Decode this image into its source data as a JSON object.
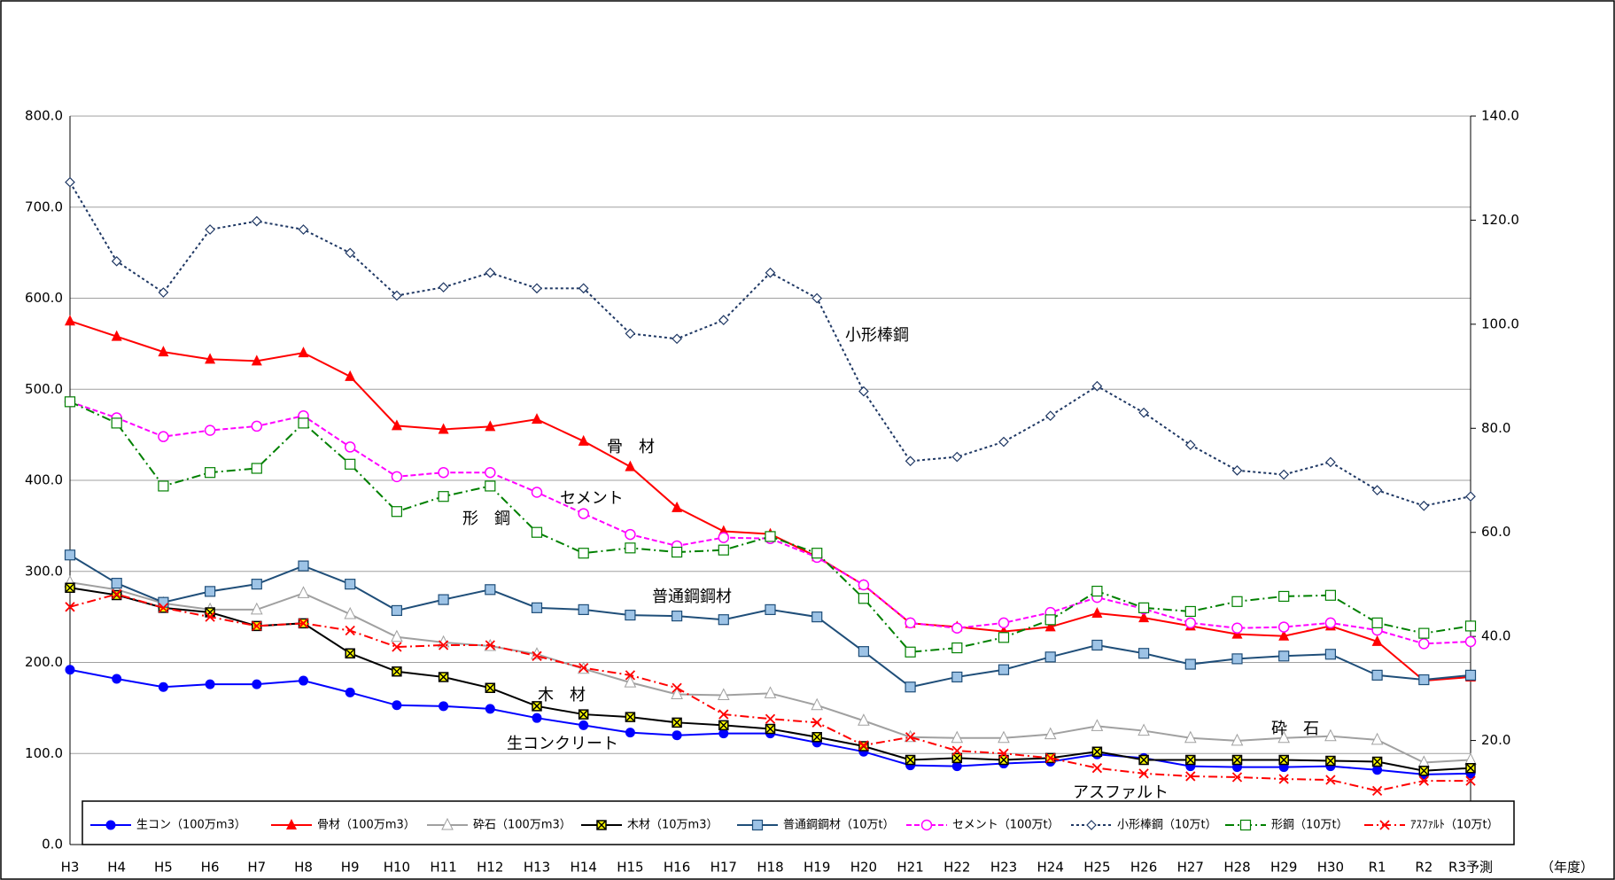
{
  "chart_data": {
    "type": "line",
    "categories": [
      "H3",
      "H4",
      "H5",
      "H6",
      "H7",
      "H8",
      "H9",
      "H10",
      "H11",
      "H12",
      "H13",
      "H14",
      "H15",
      "H16",
      "H17",
      "H18",
      "H19",
      "H20",
      "H21",
      "H22",
      "H23",
      "H24",
      "H25",
      "H26",
      "H27",
      "H28",
      "H29",
      "H30",
      "R1",
      "R2",
      "R3予測"
    ],
    "ylim": [
      0,
      800
    ],
    "yticks": [
      {
        "value": 0,
        "label": "0.0"
      },
      {
        "value": 100,
        "label": "100.0"
      },
      {
        "value": 200,
        "label": "200.0"
      },
      {
        "value": 300,
        "label": "300.0"
      },
      {
        "value": 400,
        "label": "400.0"
      },
      {
        "value": 500,
        "label": "500.0"
      },
      {
        "value": 600,
        "label": "600.0"
      },
      {
        "value": 700,
        "label": "700.0"
      },
      {
        "value": 800,
        "label": "800.0"
      }
    ],
    "y2lim": [
      0,
      140
    ],
    "y2ticks": [
      {
        "value": 20,
        "label": "20.0"
      },
      {
        "value": 40,
        "label": "40.0"
      },
      {
        "value": 60,
        "label": "60.0"
      },
      {
        "value": 80,
        "label": "80.0"
      },
      {
        "value": 100,
        "label": "100.0"
      },
      {
        "value": 120,
        "label": "120.0"
      },
      {
        "value": 140,
        "label": "140.0"
      }
    ],
    "grid": true,
    "x_label": "（年度）",
    "annotations": [
      "小形棒鋼",
      "骨　材",
      "セメント",
      "形　鋼",
      "普通鋼鋼材",
      "木　材",
      "生コンクリート",
      "砕　石",
      "アスファルト"
    ],
    "series": [
      {
        "name": "生コン（100万m3）",
        "color": "#0000ff",
        "marker": "circle",
        "line_style": "solid",
        "values": [
          192,
          182,
          173,
          176,
          176,
          180,
          167,
          153,
          152,
          149,
          139,
          131,
          123,
          120,
          122,
          122,
          112,
          102,
          87,
          86,
          89,
          91,
          99,
          95,
          86,
          85,
          85,
          86,
          82,
          77,
          78
        ]
      },
      {
        "name": "骨材（100万m3）",
        "color": "#ff0000",
        "marker": "triangle",
        "line_style": "solid",
        "values": [
          575,
          558,
          541,
          533,
          531,
          540,
          514,
          460,
          456,
          459,
          467,
          443,
          415,
          370,
          344,
          341,
          316,
          285,
          243,
          239,
          234,
          239,
          254,
          249,
          240,
          231,
          229,
          240,
          223,
          180,
          184
        ]
      },
      {
        "name": "砕石（100万m3）",
        "color": "#a0a0a0",
        "marker": "triangle-open",
        "line_style": "solid",
        "values": [
          288,
          280,
          265,
          258,
          258,
          276,
          253,
          228,
          222,
          218,
          209,
          193,
          178,
          165,
          164,
          166,
          153,
          136,
          118,
          117,
          117,
          121,
          130,
          125,
          117,
          114,
          117,
          119,
          115,
          90,
          93
        ]
      },
      {
        "name": "木材（10万m3）",
        "color": "#000000",
        "marker": "square-x",
        "marker_fill": "#ffff00",
        "line_style": "solid",
        "values": [
          282,
          274,
          260,
          255,
          240,
          243,
          210,
          190,
          184,
          172,
          152,
          143,
          140,
          134,
          131,
          127,
          118,
          108,
          93,
          95,
          93,
          95,
          102,
          93,
          93,
          93,
          93,
          92,
          91,
          81,
          84
        ]
      },
      {
        "name": "普通鋼鋼材（10万t）",
        "color": "#1f4e79",
        "marker": "square",
        "marker_fill": "#9dc3e6",
        "line_style": "solid",
        "values": [
          318,
          287,
          266,
          278,
          286,
          306,
          286,
          257,
          269,
          280,
          260,
          258,
          252,
          251,
          247,
          258,
          250,
          212,
          173,
          184,
          192,
          206,
          219,
          210,
          198,
          204,
          207,
          209,
          186,
          181,
          186
        ]
      },
      {
        "name": "セメント（100万t）",
        "color": "#ff00ff",
        "marker": "circle-open",
        "line_style": "dashed",
        "axis": "y2",
        "values": [
          85.1,
          82.0,
          78.4,
          79.6,
          80.4,
          82.4,
          76.4,
          70.7,
          71.5,
          71.5,
          67.7,
          63.6,
          59.6,
          57.4,
          59.0,
          58.8,
          55.2,
          49.9,
          42.6,
          41.6,
          42.6,
          44.6,
          47.5,
          45.3,
          42.6,
          41.6,
          41.8,
          42.6,
          41.2,
          38.6,
          39.0
        ]
      },
      {
        "name": "小形棒鋼（10万t）",
        "color": "#1f3864",
        "marker": "diamond-open",
        "line_style": "dotted",
        "axis": "y2",
        "values": [
          127.3,
          112.1,
          106.1,
          118.2,
          119.8,
          118.2,
          113.7,
          105.5,
          107.1,
          109.9,
          106.9,
          106.9,
          98.2,
          97.2,
          100.8,
          109.9,
          105.0,
          87.1,
          73.7,
          74.5,
          77.4,
          82.4,
          88.1,
          83.0,
          76.8,
          71.9,
          71.1,
          73.5,
          68.1,
          65.1,
          66.9
        ]
      },
      {
        "name": "形鋼（10万t）",
        "color": "#008000",
        "marker": "square-open",
        "line_style": "dash-dot",
        "axis": "y2",
        "values": [
          85.1,
          81.0,
          68.9,
          71.5,
          72.3,
          81.0,
          73.1,
          64.0,
          66.9,
          68.9,
          60.0,
          56.0,
          57.0,
          56.2,
          56.6,
          59.2,
          56.0,
          47.3,
          37.0,
          37.8,
          39.8,
          43.2,
          48.7,
          45.5,
          44.8,
          46.7,
          47.7,
          47.9,
          42.6,
          40.6,
          42.0
        ]
      },
      {
        "name": "ｱｽﾌｧﾙﾄ（10万t）",
        "color": "#ff0000",
        "marker": "cross",
        "line_style": "dash-dot",
        "values": [
          261,
          275,
          260,
          250,
          240,
          243,
          235,
          217,
          219,
          219,
          207,
          194,
          186,
          172,
          143,
          138,
          134,
          109,
          118,
          103,
          100,
          95,
          84,
          78,
          75,
          74,
          72,
          71,
          59,
          70,
          70
        ]
      }
    ]
  }
}
